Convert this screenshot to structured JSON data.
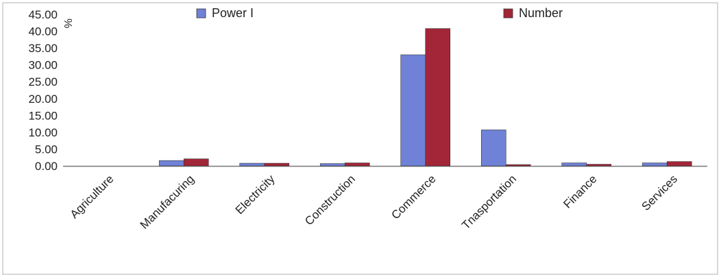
{
  "chart_data": {
    "type": "bar",
    "categories": [
      "Agriculture",
      "Manufacuring",
      "Electricity",
      "Construction",
      "Commerce",
      "Tnasportation",
      "Finance",
      "Services"
    ],
    "series": [
      {
        "name": "Power I",
        "color": "#6f82d8",
        "values": [
          0.0,
          1.6,
          0.8,
          0.7,
          33.0,
          10.7,
          0.9,
          0.9
        ]
      },
      {
        "name": "Number",
        "color": "#a32638",
        "values": [
          0.0,
          2.1,
          0.8,
          0.9,
          40.8,
          0.4,
          0.5,
          1.3
        ]
      }
    ],
    "yticks": [
      "0.00",
      "5.00",
      "10.00",
      "15.00",
      "20.00",
      "25.00",
      "30.00",
      "35.00",
      "40.00",
      "45.00"
    ],
    "ylabel": "%",
    "ylim": [
      0,
      45
    ],
    "grid": false,
    "legend_position": "top"
  }
}
